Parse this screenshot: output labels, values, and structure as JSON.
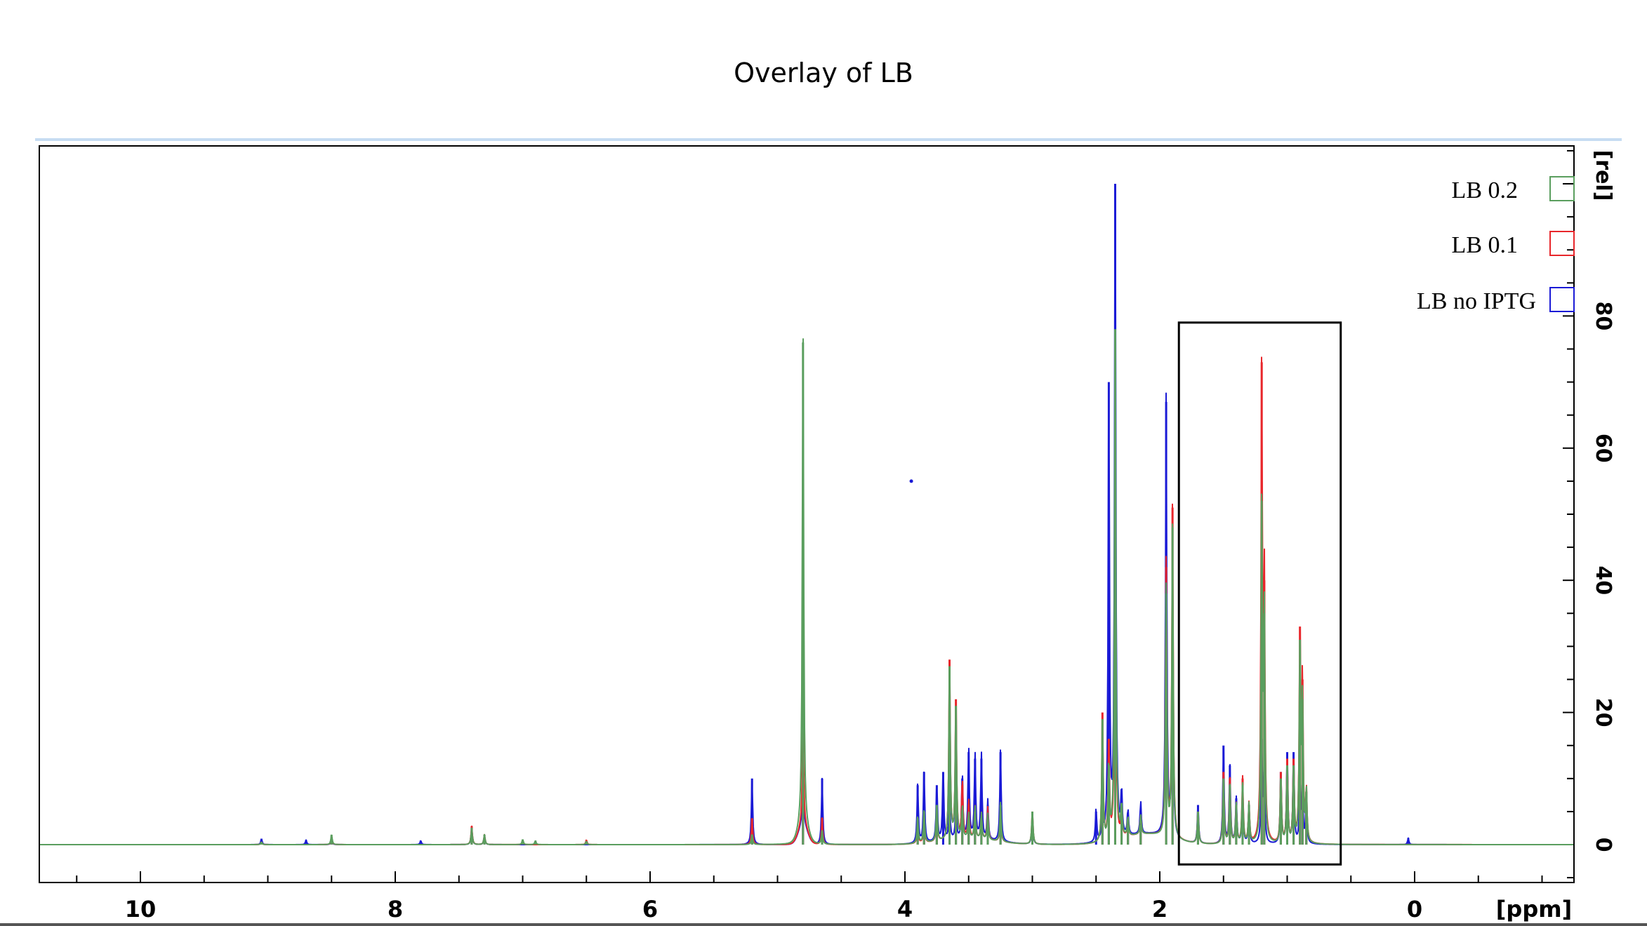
{
  "title": "Overlay of LB",
  "chart_data": {
    "type": "line",
    "title": "Overlay of LB",
    "xlabel": "[ppm]",
    "ylabel": "[rel]",
    "xlim": [
      10.8,
      -1.5
    ],
    "ylim": [
      -5,
      105
    ],
    "x_ticks": [
      10,
      8,
      6,
      4,
      2,
      0
    ],
    "y_ticks": [
      0,
      20,
      40,
      60,
      80
    ],
    "x_axis_reversed": true,
    "y_axis_side": "right",
    "legend_position": "top-right",
    "highlight_box": {
      "x_range": [
        1.85,
        0.58
      ],
      "y_range": [
        -3,
        79
      ]
    },
    "colors": {
      "LB 0.2": "#5a9e5e",
      "LB 0.1": "#e8262b",
      "LB no IPTG": "#1a1ad6"
    },
    "series": [
      {
        "name": "LB 0.2",
        "color": "#5a9e5e",
        "peaks": [
          [
            9.05,
            0.4
          ],
          [
            8.5,
            1.5
          ],
          [
            7.4,
            2.5
          ],
          [
            7.3,
            1.5
          ],
          [
            7.0,
            0.8
          ],
          [
            6.9,
            0.6
          ],
          [
            6.5,
            0.5
          ],
          [
            5.2,
            1.5
          ],
          [
            4.8,
            76
          ],
          [
            4.65,
            2
          ],
          [
            3.9,
            4
          ],
          [
            3.85,
            5
          ],
          [
            3.75,
            6
          ],
          [
            3.65,
            27
          ],
          [
            3.6,
            21
          ],
          [
            3.55,
            5
          ],
          [
            3.5,
            4
          ],
          [
            3.45,
            5
          ],
          [
            3.4,
            4
          ],
          [
            3.35,
            4
          ],
          [
            3.25,
            6
          ],
          [
            3.0,
            5
          ],
          [
            2.45,
            19
          ],
          [
            2.4,
            12
          ],
          [
            2.35,
            78
          ],
          [
            2.3,
            5
          ],
          [
            2.25,
            3
          ],
          [
            2.15,
            3
          ],
          [
            1.95,
            38
          ],
          [
            1.9,
            48
          ],
          [
            1.7,
            5
          ],
          [
            1.5,
            10
          ],
          [
            1.45,
            9
          ],
          [
            1.4,
            6
          ],
          [
            1.35,
            9
          ],
          [
            1.3,
            6
          ],
          [
            1.2,
            52
          ],
          [
            1.18,
            35
          ],
          [
            1.05,
            10
          ],
          [
            1.0,
            12
          ],
          [
            0.95,
            12
          ],
          [
            0.9,
            31
          ],
          [
            0.88,
            22
          ],
          [
            0.85,
            8
          ]
        ]
      },
      {
        "name": "LB 0.1",
        "color": "#e8262b",
        "peaks": [
          [
            9.05,
            0.4
          ],
          [
            8.5,
            1.2
          ],
          [
            7.4,
            2.8
          ],
          [
            7.3,
            1.5
          ],
          [
            7.0,
            0.6
          ],
          [
            6.5,
            0.7
          ],
          [
            5.2,
            4
          ],
          [
            4.8,
            17
          ],
          [
            4.65,
            4
          ],
          [
            3.9,
            3
          ],
          [
            3.85,
            4
          ],
          [
            3.75,
            5
          ],
          [
            3.65,
            28
          ],
          [
            3.6,
            22
          ],
          [
            3.55,
            9
          ],
          [
            3.5,
            6
          ],
          [
            3.45,
            5
          ],
          [
            3.4,
            4
          ],
          [
            3.35,
            5
          ],
          [
            3.25,
            5
          ],
          [
            3.0,
            5
          ],
          [
            2.45,
            20
          ],
          [
            2.4,
            16
          ],
          [
            2.35,
            56
          ],
          [
            2.3,
            5
          ],
          [
            2.25,
            3
          ],
          [
            2.15,
            3
          ],
          [
            1.95,
            42
          ],
          [
            1.9,
            51
          ],
          [
            1.7,
            5
          ],
          [
            1.5,
            11
          ],
          [
            1.45,
            10
          ],
          [
            1.4,
            6
          ],
          [
            1.35,
            10
          ],
          [
            1.3,
            6
          ],
          [
            1.2,
            73
          ],
          [
            1.18,
            40
          ],
          [
            1.05,
            11
          ],
          [
            1.0,
            13
          ],
          [
            0.95,
            13
          ],
          [
            0.9,
            33
          ],
          [
            0.88,
            25
          ],
          [
            0.85,
            8
          ]
        ]
      },
      {
        "name": "LB no IPTG",
        "color": "#1a1ad6",
        "peaks": [
          [
            9.05,
            0.9
          ],
          [
            8.7,
            0.7
          ],
          [
            8.5,
            0.8
          ],
          [
            7.8,
            0.6
          ],
          [
            7.4,
            2.5
          ],
          [
            7.3,
            1.3
          ],
          [
            5.2,
            10
          ],
          [
            4.8,
            8
          ],
          [
            4.65,
            10
          ],
          [
            3.9,
            9
          ],
          [
            3.85,
            11
          ],
          [
            3.75,
            9
          ],
          [
            3.7,
            11
          ],
          [
            3.65,
            6
          ],
          [
            3.6,
            5
          ],
          [
            3.55,
            10
          ],
          [
            3.5,
            14
          ],
          [
            3.45,
            13
          ],
          [
            3.4,
            13
          ],
          [
            3.35,
            6
          ],
          [
            3.25,
            14
          ],
          [
            3.0,
            4
          ],
          [
            2.5,
            5
          ],
          [
            2.45,
            4
          ],
          [
            2.4,
            70
          ],
          [
            2.35,
            100
          ],
          [
            2.3,
            7
          ],
          [
            2.25,
            4
          ],
          [
            2.15,
            5
          ],
          [
            1.95,
            67
          ],
          [
            1.9,
            37
          ],
          [
            1.7,
            6
          ],
          [
            1.5,
            15
          ],
          [
            1.45,
            12
          ],
          [
            1.4,
            7
          ],
          [
            1.35,
            8
          ],
          [
            1.3,
            6
          ],
          [
            1.2,
            16
          ],
          [
            1.18,
            11
          ],
          [
            1.05,
            11
          ],
          [
            1.0,
            14
          ],
          [
            0.95,
            14
          ],
          [
            0.9,
            9
          ],
          [
            0.88,
            8
          ],
          [
            0.85,
            7
          ],
          [
            0.05,
            1
          ]
        ]
      }
    ],
    "stray_point": {
      "x": 3.95,
      "y": 55,
      "series": "LB no IPTG"
    }
  }
}
